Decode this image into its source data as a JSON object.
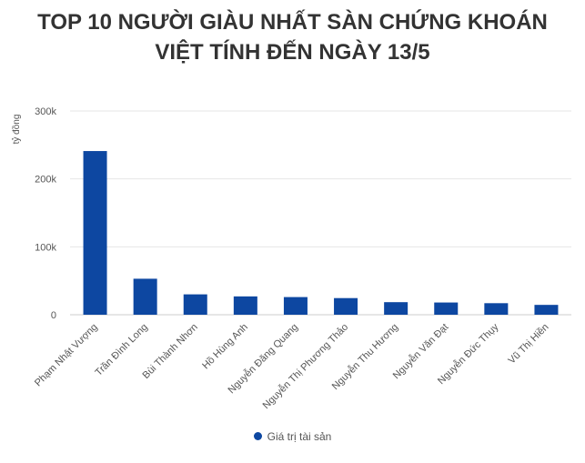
{
  "chart_data": {
    "type": "bar",
    "title": "TOP 10 NGƯỜI GIÀU NHẤT SÀN CHỨNG KHOÁN VIỆT TÍNH ĐẾN NGÀY 13/5",
    "title_lines": [
      "TOP 10 NGƯỜI GIÀU NHẤT SÀN CHỨNG KHOÁN",
      "VIỆT TÍNH ĐẾN NGÀY 13/5"
    ],
    "ylabel": "tỷ đồng",
    "xlabel": "",
    "ylim": [
      0,
      300000
    ],
    "yticks": [
      {
        "value": 0,
        "label": "0"
      },
      {
        "value": 100000,
        "label": "100k"
      },
      {
        "value": 200000,
        "label": "200k"
      },
      {
        "value": 300000,
        "label": "300k"
      }
    ],
    "grid": true,
    "legend_position": "bottom",
    "categories": [
      "Phạm Nhật Vượng",
      "Trần Đình Long",
      "Bùi Thành Nhơn",
      "Hồ Hùng Anh",
      "Nguyễn Đăng Quang",
      "Nguyễn Thị Phương Thảo",
      "Nguyễn Thu Hương",
      "Nguyễn Văn Đạt",
      "Nguyễn Đức Thụy",
      "Vũ Thị Hiền"
    ],
    "series": [
      {
        "name": "Giá trị tài sản",
        "color": "#0d47a1",
        "values": [
          241000,
          53000,
          30000,
          27000,
          26000,
          24500,
          18500,
          18000,
          17000,
          14500
        ]
      }
    ]
  }
}
